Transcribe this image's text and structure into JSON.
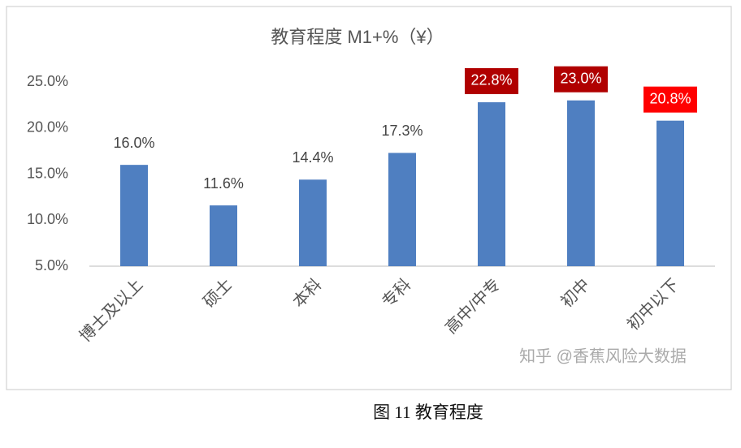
{
  "chart_data": {
    "type": "bar",
    "title": "教育程度 M1+%（¥）",
    "categories": [
      "博士及以上",
      "硕士",
      "本科",
      "专科",
      "高中/中专",
      "初中",
      "初中以下"
    ],
    "values": [
      16.0,
      11.6,
      14.4,
      17.3,
      22.8,
      23.0,
      20.8
    ],
    "value_labels": [
      "16.0%",
      "11.6%",
      "14.4%",
      "17.3%",
      "22.8%",
      "23.0%",
      "20.8%"
    ],
    "label_highlights": [
      null,
      null,
      null,
      null,
      "#b00000",
      "#b00000",
      "#ff0000"
    ],
    "color": "#4f7fc1",
    "ylim": [
      5,
      25
    ],
    "yticks": [
      {
        "value": 5,
        "label": "5.0%"
      },
      {
        "value": 10,
        "label": "10.0%"
      },
      {
        "value": 15,
        "label": "15.0%"
      },
      {
        "value": 20,
        "label": "20.0%"
      },
      {
        "value": 25,
        "label": "25.0%"
      }
    ],
    "grid": false,
    "watermark": "知乎 @香蕉风险大数据",
    "caption": "图 11  教育程度"
  }
}
